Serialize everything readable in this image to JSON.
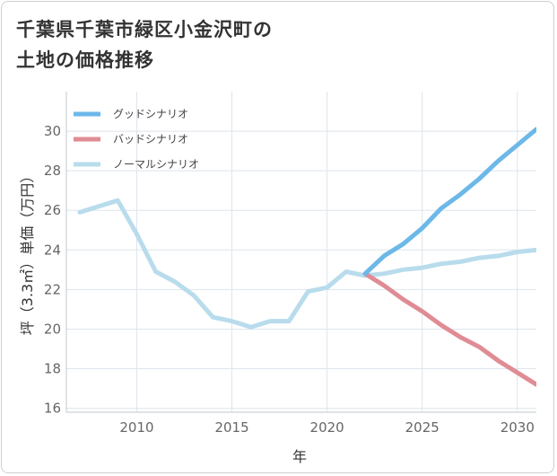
{
  "title_line1": "千葉県千葉市緑区小金沢町の",
  "title_line2": "土地の価格推移",
  "chart_data": {
    "type": "line",
    "xlabel": "年",
    "ylabel": "坪（3.3㎡）単価（万円）",
    "xlim": [
      2006.3,
      2031
    ],
    "ylim": [
      15.8,
      32
    ],
    "x_ticks": [
      2010,
      2015,
      2020,
      2025,
      2030
    ],
    "y_ticks": [
      16,
      18,
      20,
      22,
      24,
      26,
      28,
      30
    ],
    "grid": true,
    "legend_position": "top-left",
    "series": [
      {
        "name": "グッドシナリオ",
        "color": "#6cb8e8",
        "x": [
          2022,
          2023,
          2024,
          2025,
          2026,
          2027,
          2028,
          2029,
          2030,
          2031
        ],
        "y": [
          22.8,
          23.7,
          24.3,
          25.1,
          26.1,
          26.8,
          27.6,
          28.5,
          29.3,
          30.1
        ]
      },
      {
        "name": "バッドシナリオ",
        "color": "#e08c95",
        "x": [
          2022,
          2023,
          2024,
          2025,
          2026,
          2027,
          2028,
          2029,
          2030,
          2031
        ],
        "y": [
          22.8,
          22.2,
          21.5,
          20.9,
          20.2,
          19.6,
          19.1,
          18.4,
          17.8,
          17.2
        ]
      },
      {
        "name": "ノーマルシナリオ",
        "color": "#b8dcec",
        "x": [
          2007,
          2008,
          2009,
          2010,
          2011,
          2012,
          2013,
          2014,
          2015,
          2016,
          2017,
          2018,
          2019,
          2020,
          2021,
          2022,
          2023,
          2024,
          2025,
          2026,
          2027,
          2028,
          2029,
          2030,
          2031
        ],
        "y": [
          25.9,
          26.2,
          26.5,
          24.8,
          22.9,
          22.4,
          21.7,
          20.6,
          20.4,
          20.1,
          20.4,
          20.4,
          21.9,
          22.1,
          22.9,
          22.7,
          22.8,
          23.0,
          23.1,
          23.3,
          23.4,
          23.6,
          23.7,
          23.9,
          24.0
        ]
      }
    ]
  }
}
